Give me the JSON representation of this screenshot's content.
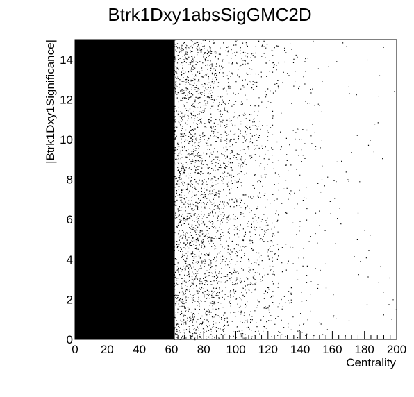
{
  "chart_data": {
    "type": "scatter",
    "title": "Btrk1Dxy1absSigGMC2D",
    "xlabel": "Centrality",
    "ylabel": "|Btrk1Dxy1Significance|",
    "xlim": [
      0,
      200
    ],
    "ylim": [
      0,
      15
    ],
    "x_ticks": [
      0,
      20,
      40,
      60,
      80,
      100,
      120,
      140,
      160,
      180,
      200
    ],
    "y_ticks": [
      0,
      2,
      4,
      6,
      8,
      10,
      12,
      14
    ],
    "grid": false,
    "legend": "none",
    "marker_color": "#000000",
    "density_profile": {
      "x": [
        0,
        20,
        40,
        60,
        70,
        80,
        90,
        100,
        110,
        120,
        130,
        140,
        150,
        160,
        170,
        180,
        190,
        200
      ],
      "relative_density": [
        1.0,
        1.0,
        1.0,
        0.97,
        0.9,
        0.75,
        0.6,
        0.45,
        0.33,
        0.22,
        0.15,
        0.1,
        0.065,
        0.04,
        0.025,
        0.015,
        0.01,
        0.005
      ]
    }
  }
}
